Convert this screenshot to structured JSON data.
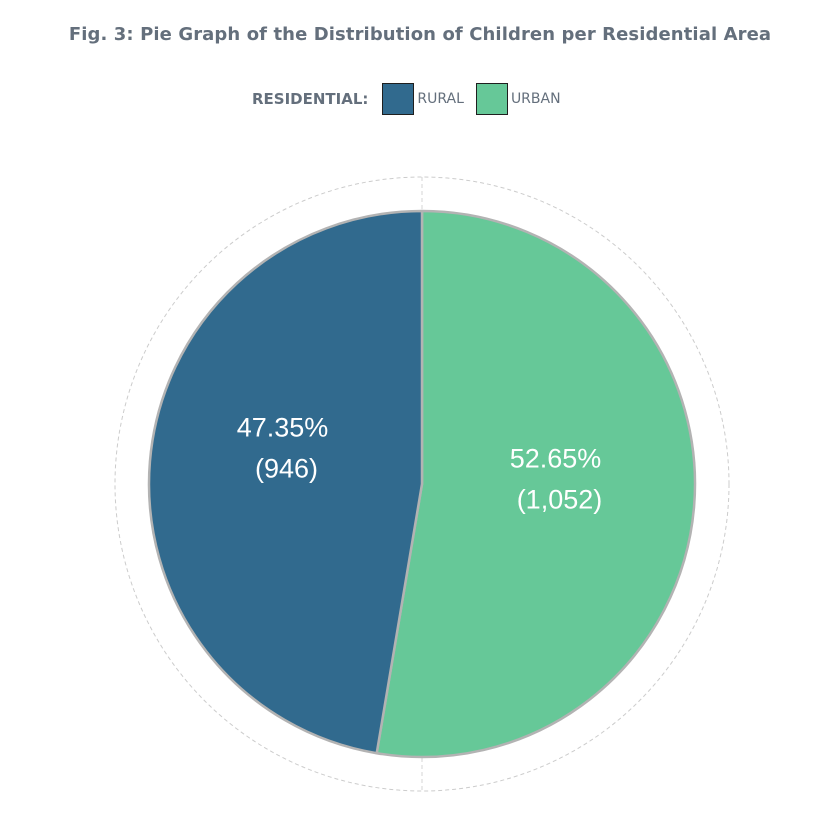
{
  "chart_data": {
    "type": "pie",
    "title": "Fig. 3: Pie Graph of the Distribution of Children per Residential Area",
    "legend": {
      "title": "RESIDENTIAL:",
      "placement": "top-center"
    },
    "slices": [
      {
        "category": "RURAL",
        "value": 946,
        "percent": 47.35,
        "percent_label": "47.35%",
        "count_label": "(946)",
        "color": "#316a8e"
      },
      {
        "category": "URBAN",
        "value": 1052,
        "percent": 52.65,
        "percent_label": "52.65%",
        "count_label": "(1,052)",
        "color": "#66c898"
      }
    ],
    "start_angle_deg": 0,
    "direction": "clockwise"
  }
}
